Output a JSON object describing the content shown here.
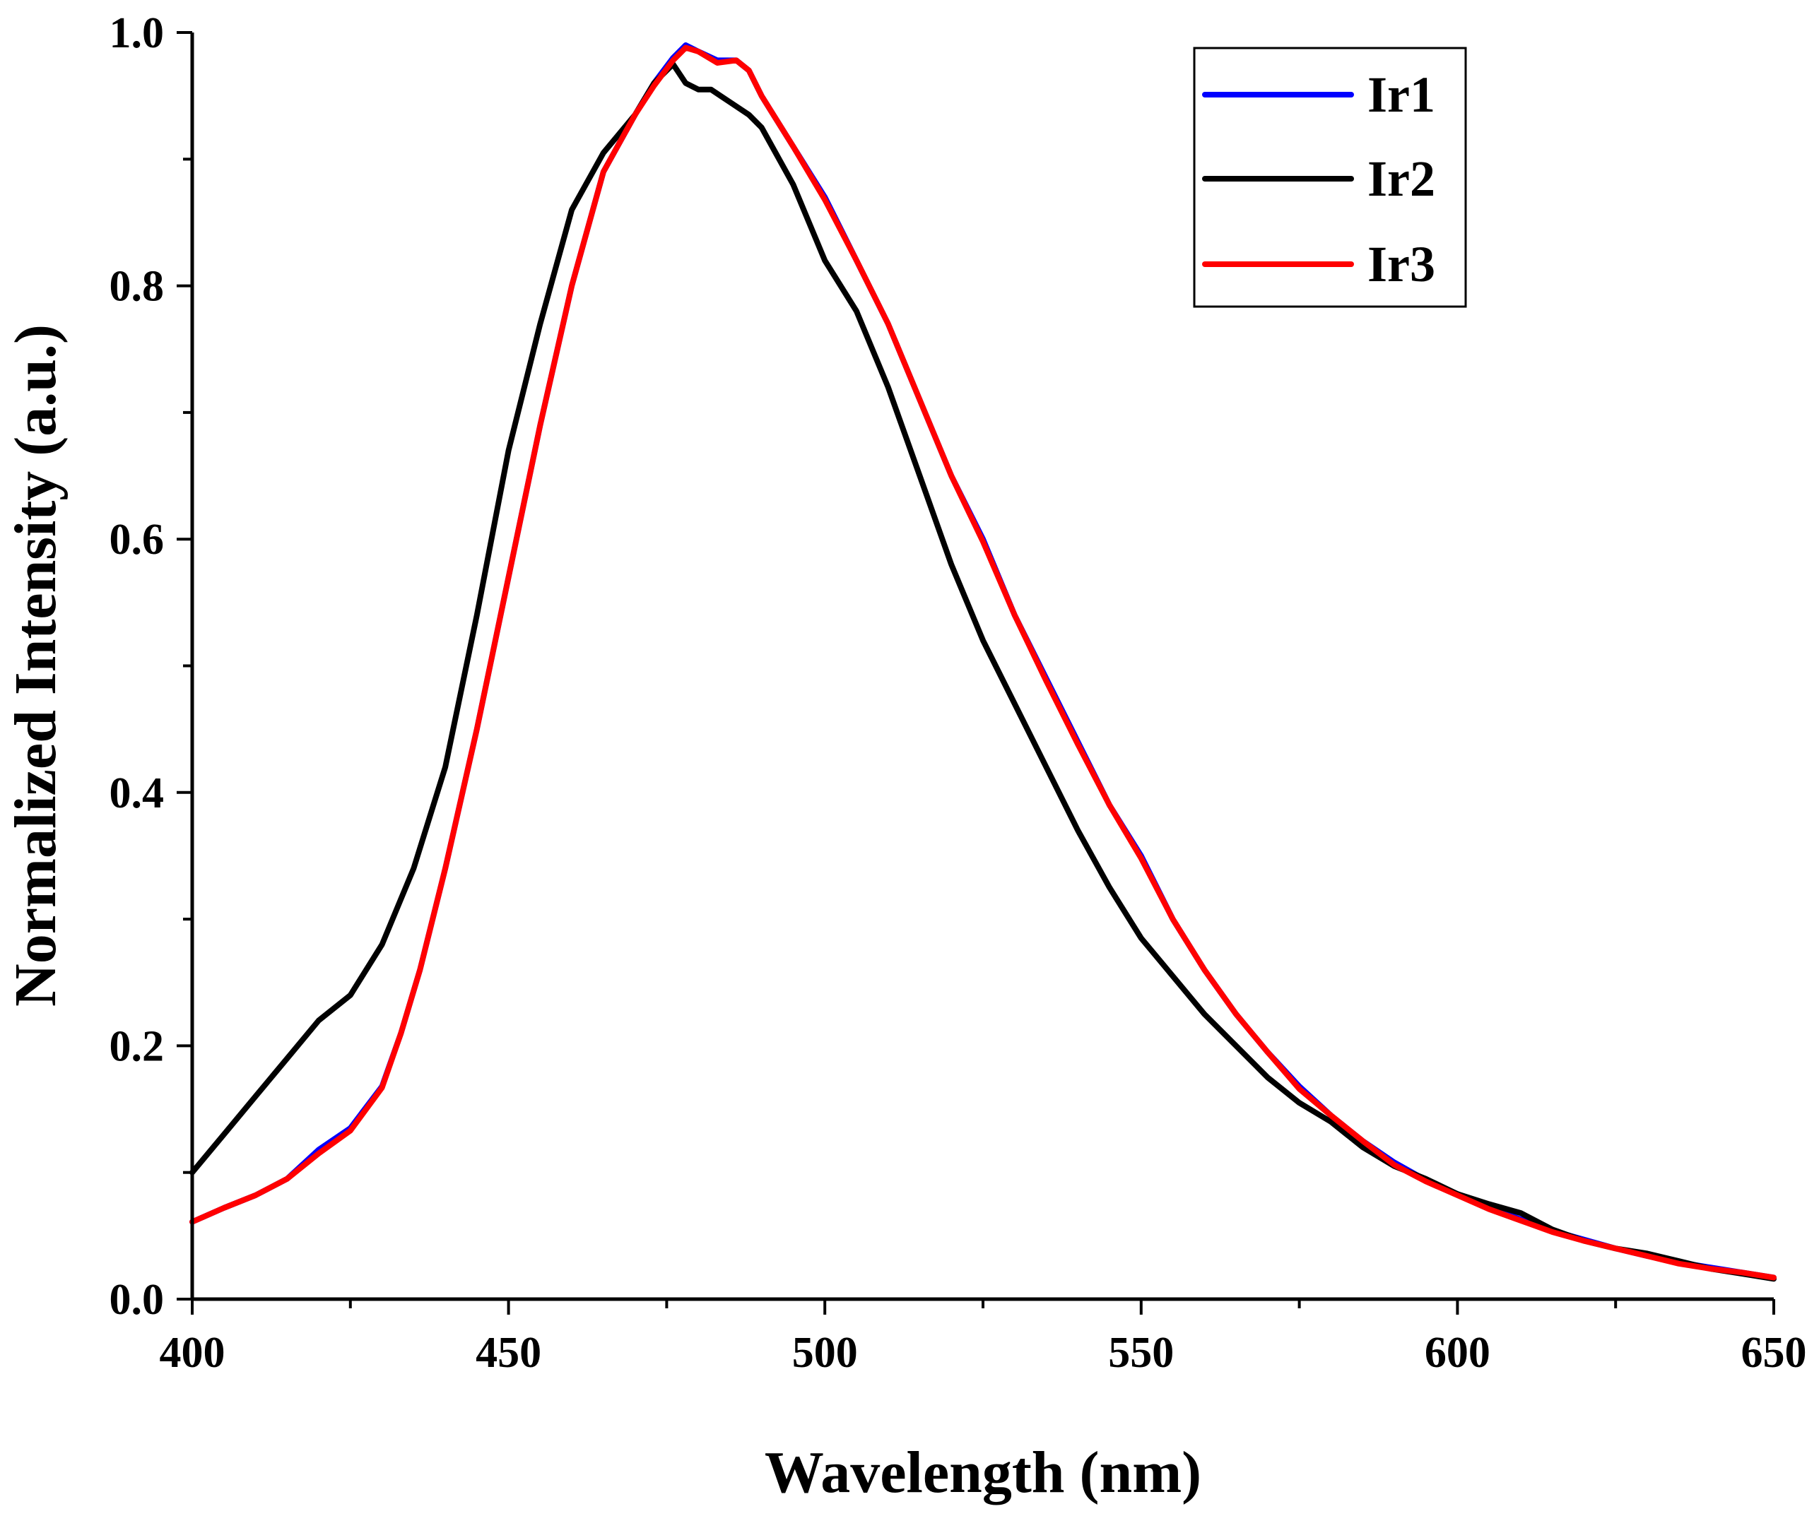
{
  "chart_data": {
    "type": "line",
    "title": "",
    "xlabel": "Wavelength (nm)",
    "ylabel": "Normalized Intensity (a.u.)",
    "xlim": [
      400,
      650
    ],
    "ylim": [
      0.0,
      1.0
    ],
    "x_major_ticks": [
      400,
      450,
      500,
      550,
      600,
      650
    ],
    "x_tick_labels": [
      "400",
      "450",
      "500",
      "550",
      "600",
      "650"
    ],
    "x_minor_ticks": [
      425,
      475,
      525,
      575,
      625
    ],
    "y_major_ticks": [
      0.0,
      0.2,
      0.4,
      0.6,
      0.8,
      1.0
    ],
    "y_tick_labels": [
      "0.0",
      "0.2",
      "0.4",
      "0.6",
      "0.8",
      "1.0"
    ],
    "y_minor_ticks": [
      0.1,
      0.3,
      0.5,
      0.7,
      0.9
    ],
    "grid": false,
    "legend_position": "top-right",
    "series": [
      {
        "name": "Ir1",
        "color": "#0000FF",
        "x": [
          400,
          405,
          410,
          415,
          420,
          425,
          430,
          433,
          436,
          440,
          445,
          450,
          455,
          460,
          465,
          470,
          473,
          476,
          478,
          480,
          483,
          486,
          488,
          490,
          495,
          500,
          505,
          510,
          515,
          520,
          525,
          530,
          535,
          540,
          545,
          550,
          555,
          560,
          565,
          570,
          575,
          580,
          585,
          590,
          595,
          600,
          605,
          610,
          615,
          620,
          625,
          630,
          635,
          640,
          645,
          650
        ],
        "y": [
          0.061,
          0.072,
          0.082,
          0.095,
          0.118,
          0.135,
          0.168,
          0.21,
          0.26,
          0.34,
          0.45,
          0.57,
          0.69,
          0.8,
          0.89,
          0.935,
          0.96,
          0.98,
          0.99,
          0.985,
          0.978,
          0.978,
          0.97,
          0.95,
          0.91,
          0.87,
          0.82,
          0.77,
          0.71,
          0.65,
          0.6,
          0.54,
          0.49,
          0.44,
          0.39,
          0.35,
          0.3,
          0.26,
          0.225,
          0.195,
          0.168,
          0.145,
          0.125,
          0.108,
          0.094,
          0.083,
          0.072,
          0.063,
          0.054,
          0.047,
          0.04,
          0.034,
          0.029,
          0.025,
          0.021,
          0.017
        ]
      },
      {
        "name": "Ir2",
        "color": "#000000",
        "x": [
          400,
          405,
          410,
          415,
          420,
          425,
          430,
          435,
          440,
          445,
          450,
          455,
          460,
          465,
          470,
          473,
          476,
          478,
          480,
          482,
          485,
          488,
          490,
          495,
          500,
          505,
          510,
          515,
          520,
          525,
          530,
          535,
          540,
          545,
          550,
          555,
          560,
          565,
          570,
          575,
          580,
          585,
          590,
          595,
          600,
          605,
          610,
          615,
          620,
          625,
          630,
          635,
          640,
          645,
          650
        ],
        "y": [
          0.1,
          0.13,
          0.16,
          0.19,
          0.22,
          0.24,
          0.28,
          0.34,
          0.42,
          0.54,
          0.67,
          0.77,
          0.86,
          0.905,
          0.935,
          0.96,
          0.975,
          0.96,
          0.955,
          0.955,
          0.945,
          0.935,
          0.925,
          0.88,
          0.82,
          0.78,
          0.72,
          0.65,
          0.58,
          0.52,
          0.47,
          0.42,
          0.37,
          0.325,
          0.285,
          0.255,
          0.225,
          0.2,
          0.175,
          0.155,
          0.14,
          0.12,
          0.105,
          0.095,
          0.083,
          0.075,
          0.068,
          0.055,
          0.046,
          0.04,
          0.036,
          0.03,
          0.024,
          0.02,
          0.016
        ]
      },
      {
        "name": "Ir3",
        "color": "#FF0000",
        "x": [
          400,
          405,
          410,
          415,
          420,
          425,
          430,
          433,
          436,
          440,
          445,
          450,
          455,
          460,
          465,
          470,
          473,
          476,
          478,
          480,
          483,
          486,
          488,
          490,
          495,
          500,
          505,
          510,
          515,
          520,
          525,
          530,
          535,
          540,
          545,
          550,
          555,
          560,
          565,
          570,
          575,
          580,
          585,
          590,
          595,
          600,
          605,
          610,
          615,
          620,
          625,
          630,
          635,
          640,
          645,
          650
        ],
        "y": [
          0.061,
          0.072,
          0.082,
          0.095,
          0.115,
          0.133,
          0.167,
          0.21,
          0.26,
          0.34,
          0.45,
          0.57,
          0.69,
          0.8,
          0.89,
          0.935,
          0.958,
          0.978,
          0.988,
          0.985,
          0.976,
          0.978,
          0.97,
          0.95,
          0.91,
          0.868,
          0.82,
          0.77,
          0.71,
          0.65,
          0.598,
          0.54,
          0.488,
          0.438,
          0.39,
          0.348,
          0.3,
          0.26,
          0.225,
          0.195,
          0.166,
          0.145,
          0.125,
          0.106,
          0.093,
          0.082,
          0.071,
          0.062,
          0.053,
          0.046,
          0.04,
          0.034,
          0.028,
          0.024,
          0.021,
          0.017
        ]
      }
    ]
  }
}
